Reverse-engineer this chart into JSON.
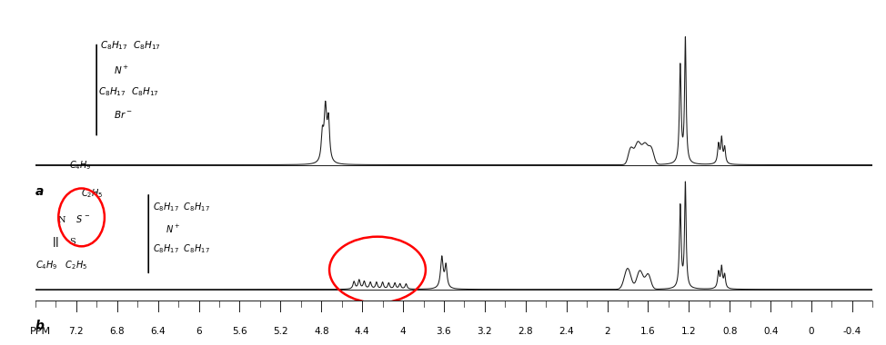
{
  "xlim": [
    7.6,
    -0.6
  ],
  "xticks": [
    7.2,
    6.8,
    6.4,
    6.0,
    5.6,
    5.2,
    4.8,
    4.4,
    4.0,
    3.6,
    3.2,
    2.8,
    2.4,
    2.0,
    1.6,
    1.2,
    0.8,
    0.4,
    0.0,
    -0.4
  ],
  "background_color": "#ffffff",
  "line_color": "#1a1a1a",
  "label_a": "a",
  "label_b": "b",
  "ppm_label": "PPM",
  "fig_width": 9.74,
  "fig_height": 3.8,
  "dpi": 100
}
